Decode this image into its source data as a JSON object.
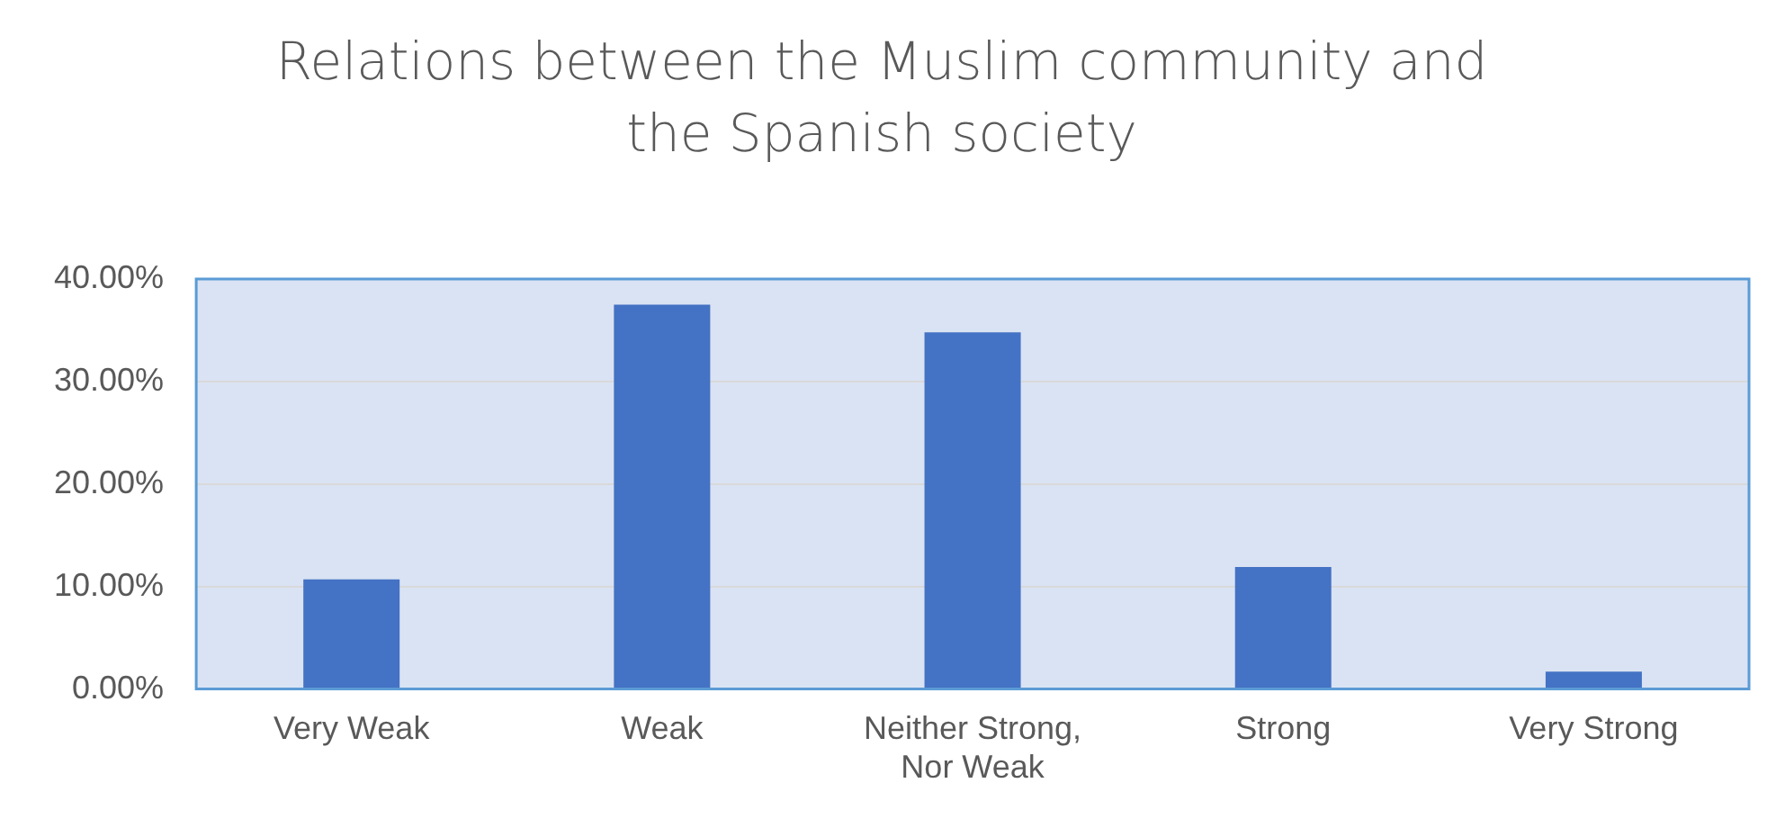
{
  "chart_data": {
    "type": "bar",
    "title": "Relations between the Muslim community and the Spanish society",
    "categories": [
      "Very Weak",
      "Weak",
      "Neither Strong, Nor Weak",
      "Strong",
      "Very Strong"
    ],
    "values": [
      10.7,
      37.5,
      34.8,
      11.9,
      1.7
    ],
    "color": "#4472c4",
    "ylim": [
      0,
      40
    ],
    "yticks": [
      {
        "value": 0,
        "label": "0.00%"
      },
      {
        "value": 10,
        "label": "10.00%"
      },
      {
        "value": 20,
        "label": "20.00%"
      },
      {
        "value": 30,
        "label": "30.00%"
      },
      {
        "value": 40,
        "label": "40.00%"
      }
    ],
    "grid": "y",
    "legend": false
  }
}
